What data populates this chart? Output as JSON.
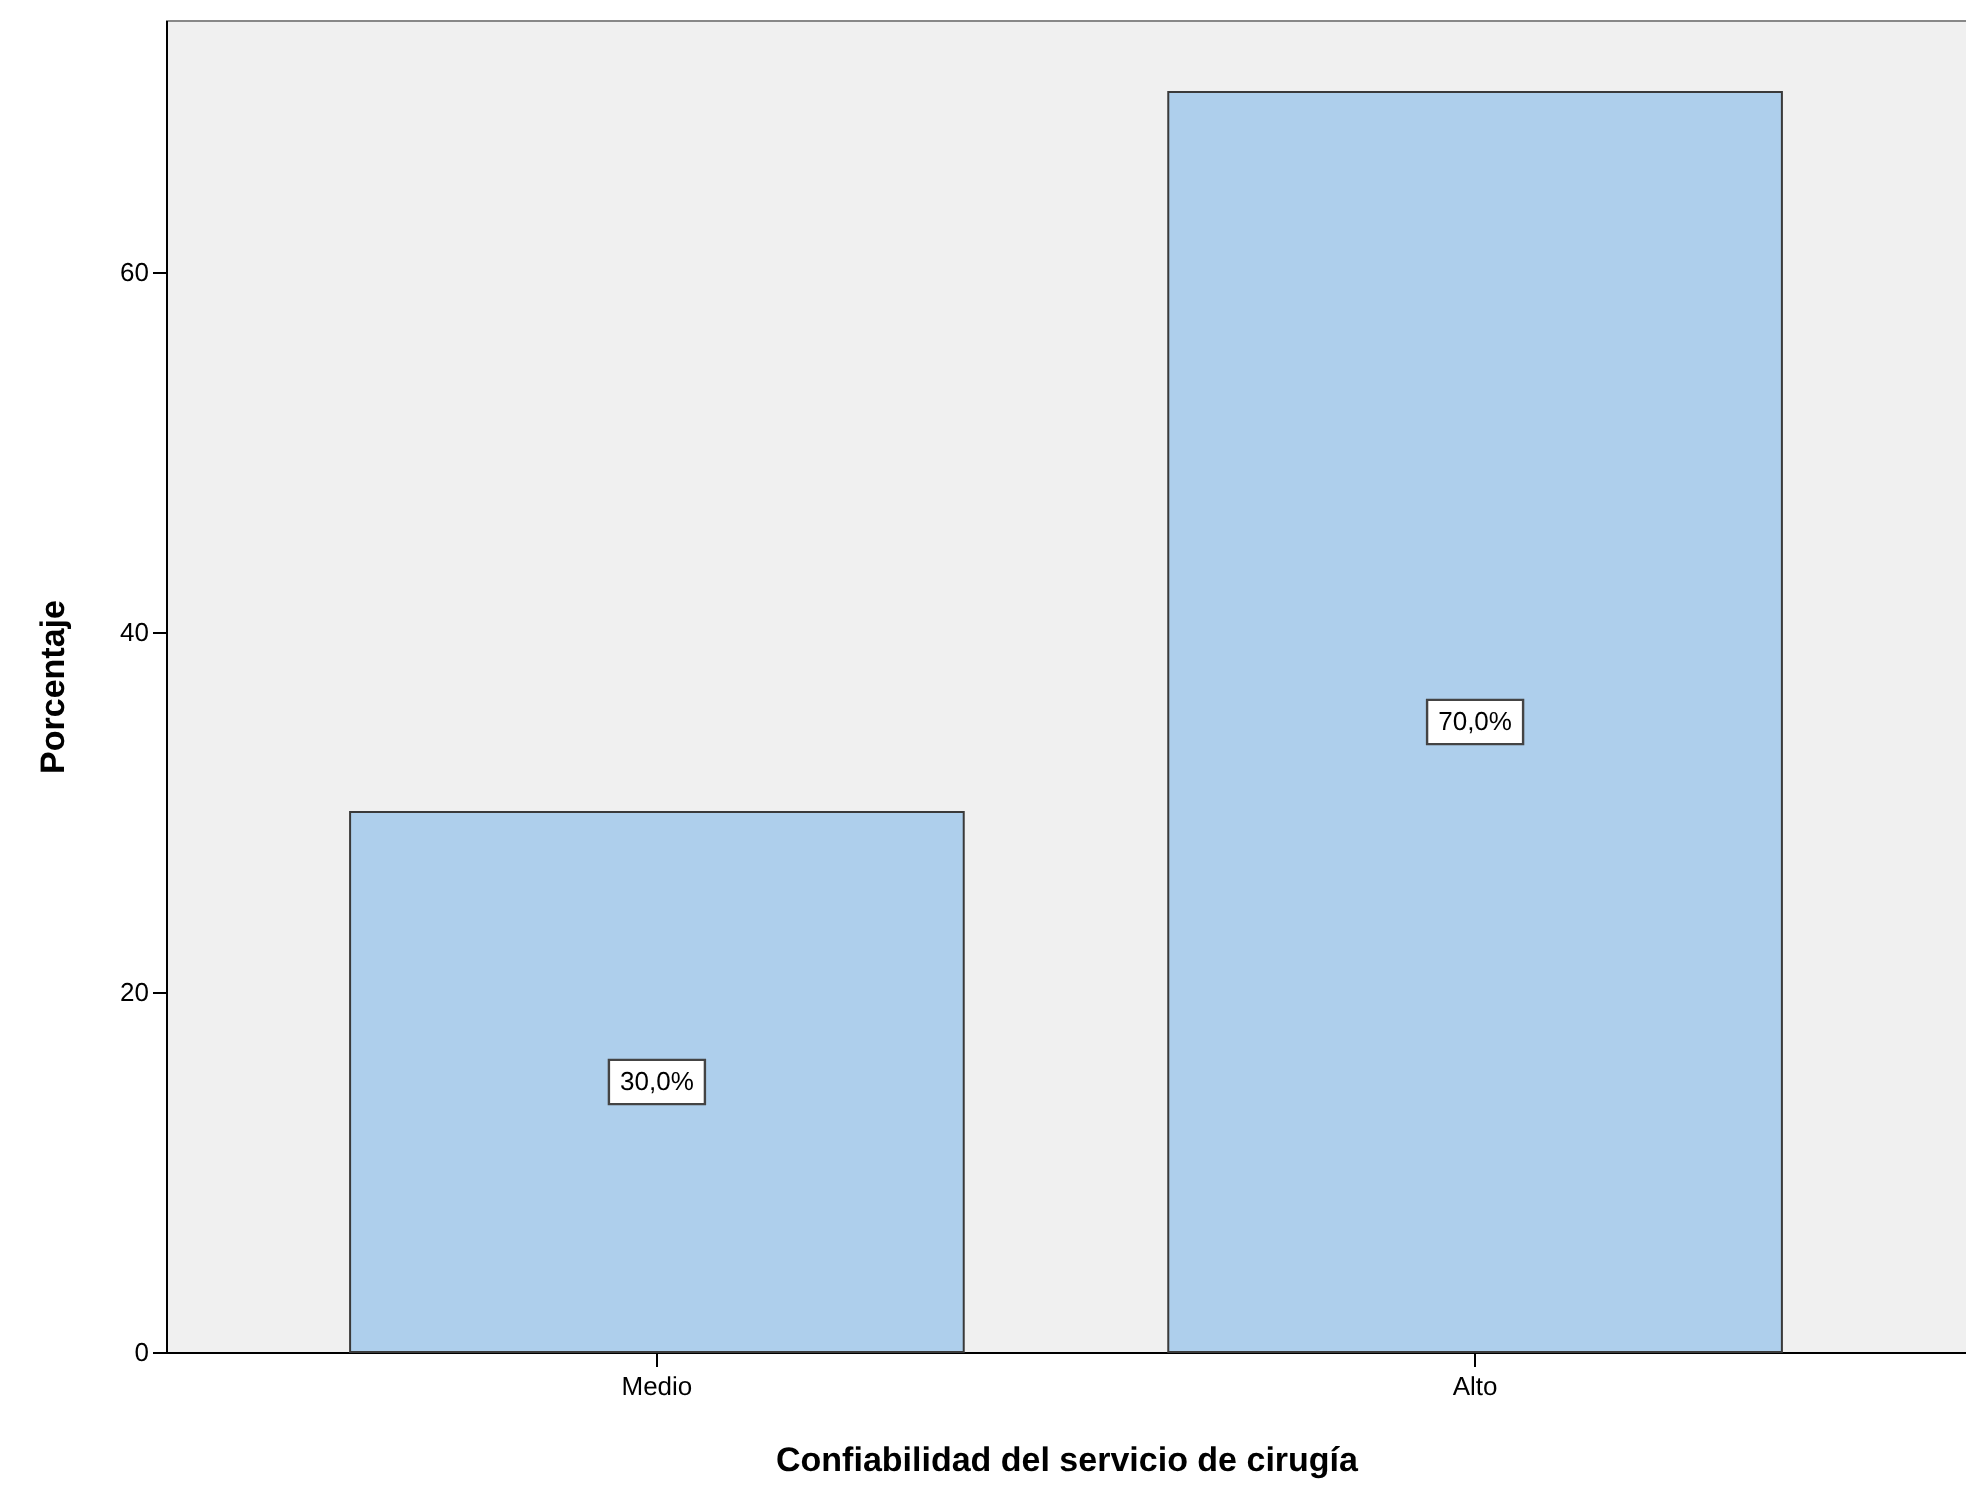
{
  "chart_data": {
    "type": "bar",
    "xlabel": "Confiabilidad del servicio de cirugía",
    "ylabel": "Porcentaje",
    "categories": [
      "Medio",
      "Alto"
    ],
    "values": [
      30,
      70
    ],
    "color": "#aecfec",
    "value_labels": [
      "30,0%",
      "70,0%"
    ],
    "ylim": [
      0,
      74
    ],
    "yticks": [
      0,
      20,
      40,
      60
    ],
    "grid": false
  }
}
